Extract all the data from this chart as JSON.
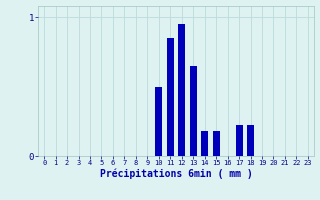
{
  "values": [
    0,
    0,
    0,
    0,
    0,
    0,
    0,
    0,
    0,
    0,
    0.5,
    0.85,
    0.95,
    0.65,
    0.18,
    0.18,
    0,
    0.22,
    0.22,
    0,
    0,
    0,
    0,
    0
  ],
  "bar_color": "#0000bb",
  "bg_color": "#dff2f2",
  "grid_color": "#c0dede",
  "xlabel": "Précipitations 6min ( mm )",
  "xlabel_color": "#0000aa",
  "tick_label_color": "#000088",
  "ytick_labels": [
    "0",
    "1"
  ],
  "ytick_values": [
    0,
    1
  ],
  "ylim": [
    0,
    1.08
  ],
  "xlim": [
    -0.5,
    23.5
  ],
  "n_bars": 24
}
